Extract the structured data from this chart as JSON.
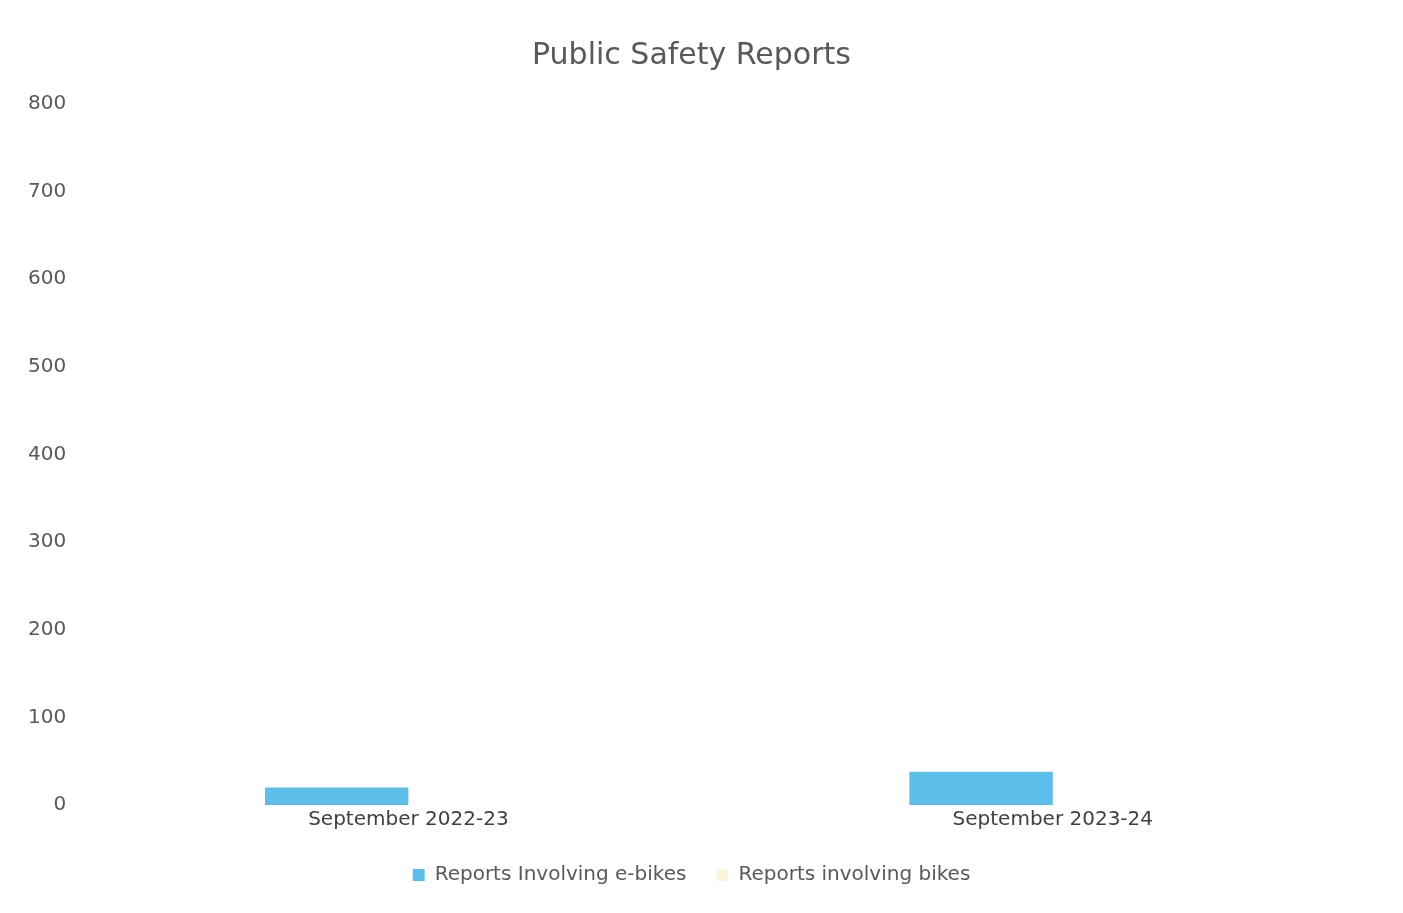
{
  "chart_data": {
    "type": "bar",
    "title": "Public Safety Reports",
    "categories": [
      "September 2022-23",
      "September 2023-24"
    ],
    "series": [
      {
        "name": "Reports Involving e-bikes",
        "color": "#5bbfea",
        "values": [
          20,
          38
        ]
      },
      {
        "name": "Reports involving bikes",
        "color": "#fbf3dc",
        "values": [
          null,
          null
        ]
      }
    ],
    "ylim": [
      0,
      800
    ],
    "yticks": [
      0,
      100,
      200,
      300,
      400,
      500,
      600,
      700,
      800
    ],
    "grid": false,
    "legend": "bottom"
  }
}
